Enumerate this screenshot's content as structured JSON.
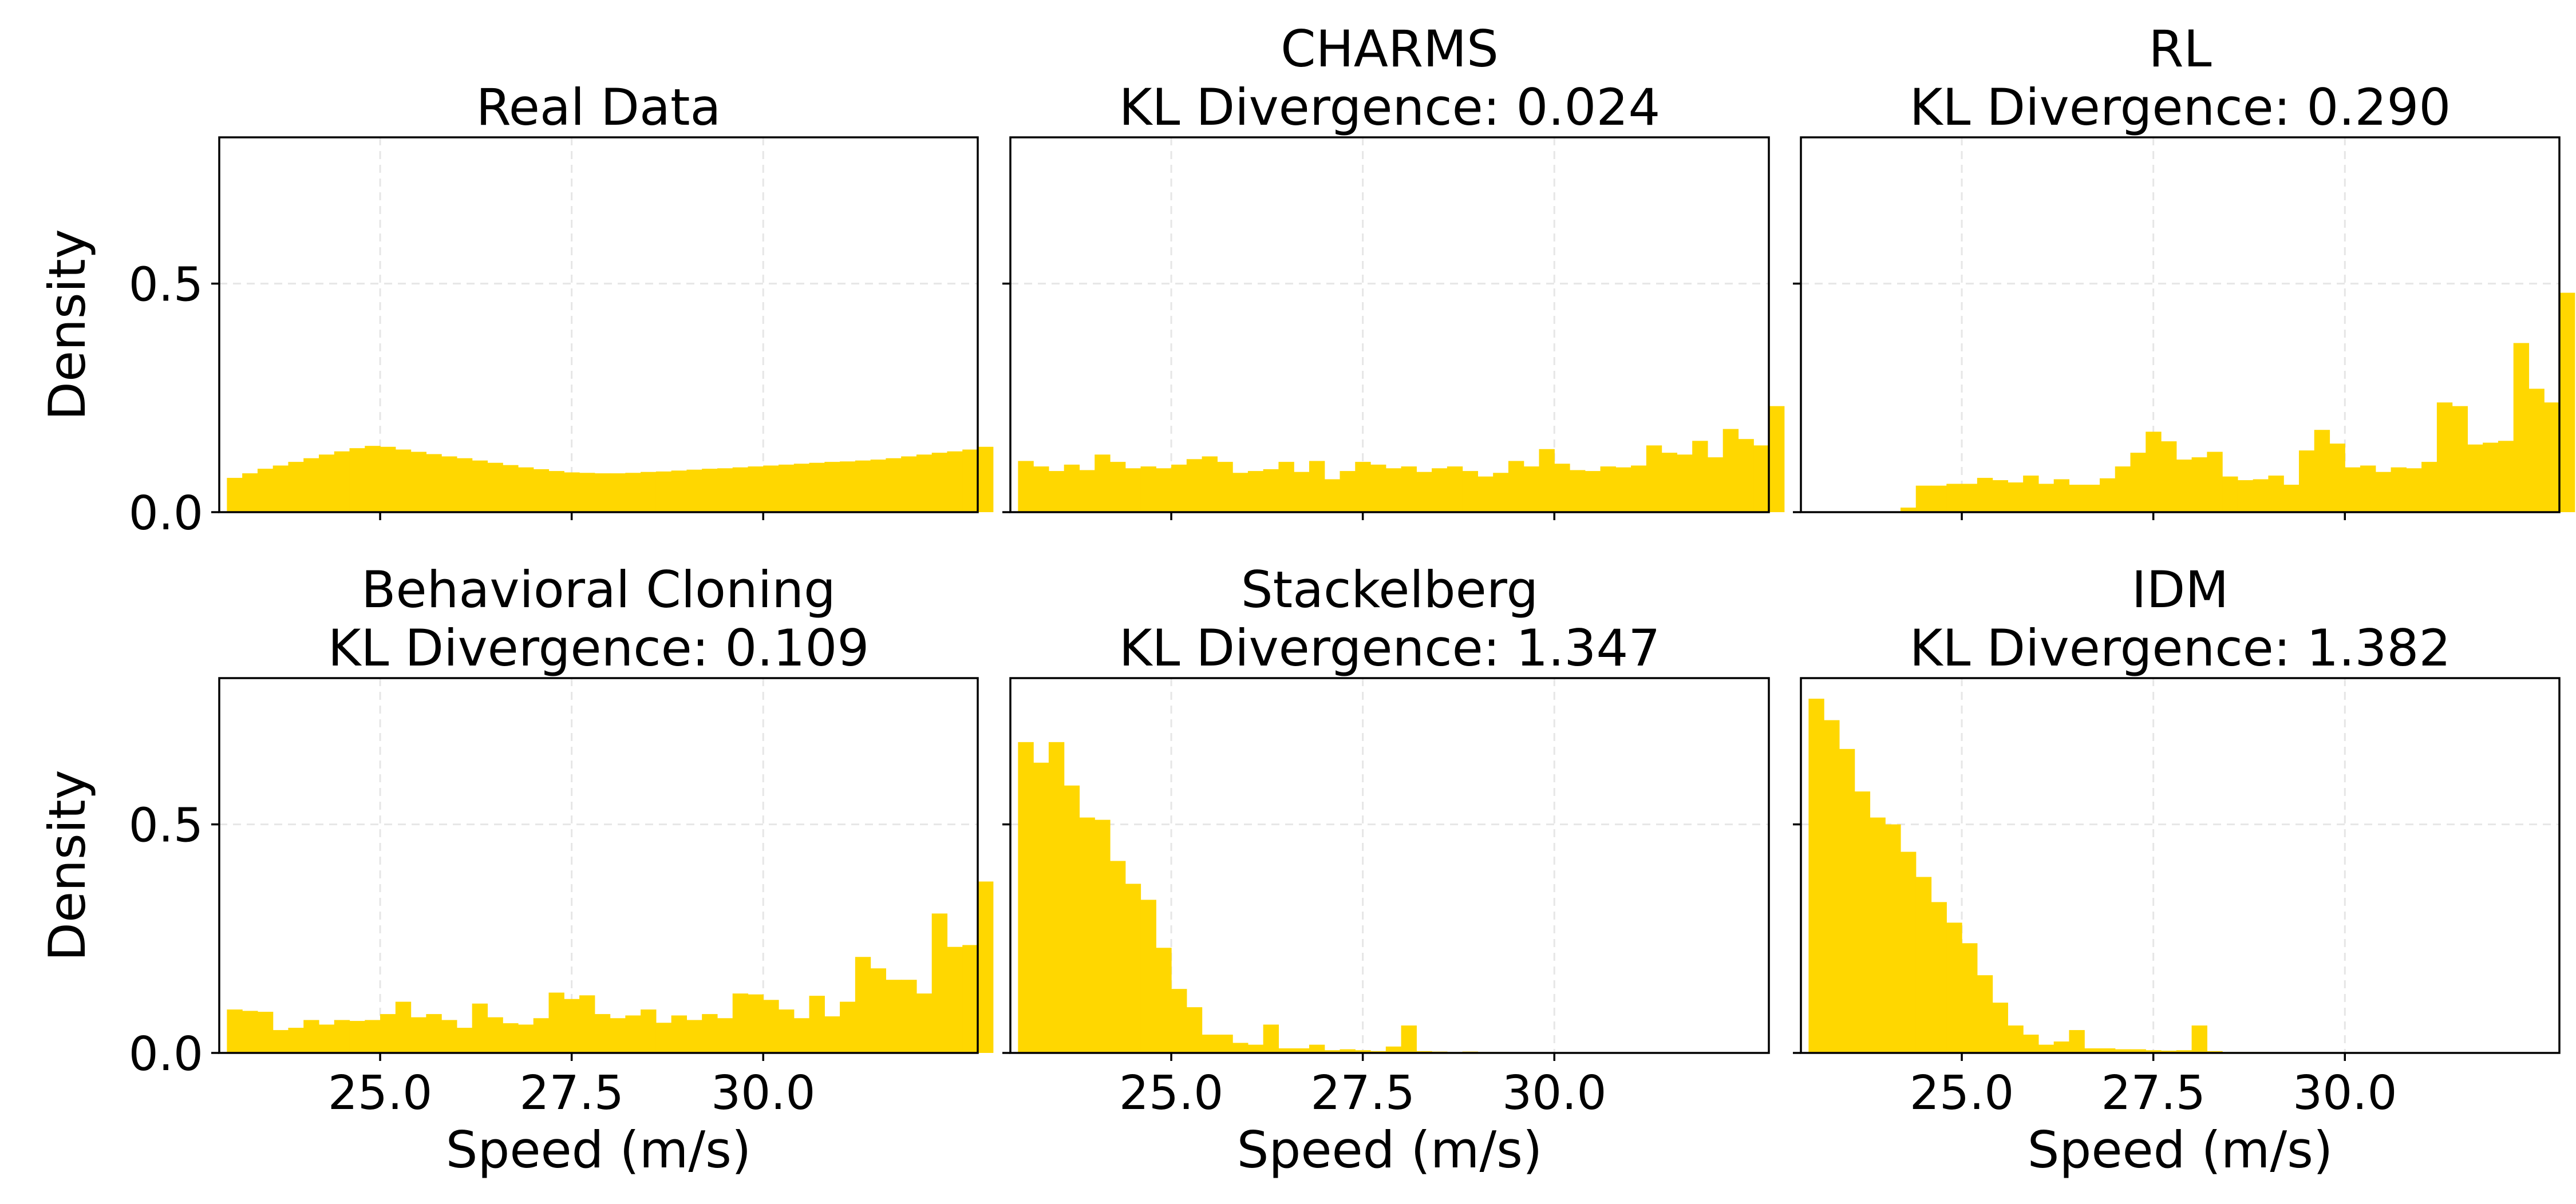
{
  "figure": {
    "bar_color": "#FFD700",
    "frame_color": "#000000",
    "grid_color": "#e6e6e6"
  },
  "chart_data": [
    {
      "type": "bar",
      "title": "Real Data",
      "title_line2": "",
      "xlabel": "",
      "ylabel": "Density",
      "xlim": [
        22.9,
        32.8
      ],
      "ylim": [
        0.0,
        0.82
      ],
      "xticks": [
        25.0,
        27.5,
        30.0
      ],
      "xtick_labels": [
        "",
        "",
        ""
      ],
      "yticks": [
        0.0,
        0.5
      ],
      "ytick_labels": [
        "0.0",
        "0.5"
      ],
      "grid": true,
      "bin_start": 23.0,
      "bin_width": 0.2,
      "values": [
        0.075,
        0.085,
        0.095,
        0.102,
        0.11,
        0.118,
        0.126,
        0.133,
        0.14,
        0.145,
        0.143,
        0.137,
        0.132,
        0.127,
        0.122,
        0.118,
        0.113,
        0.108,
        0.103,
        0.098,
        0.094,
        0.09,
        0.087,
        0.086,
        0.085,
        0.085,
        0.086,
        0.088,
        0.089,
        0.091,
        0.093,
        0.095,
        0.096,
        0.098,
        0.1,
        0.102,
        0.104,
        0.106,
        0.108,
        0.11,
        0.111,
        0.113,
        0.115,
        0.118,
        0.122,
        0.126,
        0.13,
        0.133,
        0.137,
        0.143
      ]
    },
    {
      "type": "bar",
      "title": "CHARMS",
      "title_line2": "KL Divergence: 0.024",
      "xlabel": "",
      "ylabel": "",
      "xlim": [
        22.9,
        32.8
      ],
      "ylim": [
        0.0,
        0.82
      ],
      "xticks": [
        25.0,
        27.5,
        30.0
      ],
      "xtick_labels": [
        "",
        "",
        ""
      ],
      "yticks": [
        0.0,
        0.5
      ],
      "ytick_labels": [
        "",
        ""
      ],
      "grid": true,
      "bin_start": 23.0,
      "bin_width": 0.2,
      "values": [
        0.112,
        0.1,
        0.09,
        0.104,
        0.092,
        0.126,
        0.11,
        0.096,
        0.1,
        0.096,
        0.104,
        0.116,
        0.122,
        0.11,
        0.086,
        0.09,
        0.094,
        0.11,
        0.088,
        0.112,
        0.072,
        0.09,
        0.11,
        0.104,
        0.096,
        0.1,
        0.088,
        0.096,
        0.1,
        0.09,
        0.078,
        0.086,
        0.112,
        0.1,
        0.138,
        0.106,
        0.092,
        0.09,
        0.1,
        0.098,
        0.102,
        0.146,
        0.13,
        0.126,
        0.156,
        0.12,
        0.182,
        0.16,
        0.146,
        0.232
      ]
    },
    {
      "type": "bar",
      "title": "RL",
      "title_line2": "KL Divergence: 0.290",
      "xlabel": "",
      "ylabel": "",
      "xlim": [
        22.9,
        32.8
      ],
      "ylim": [
        0.0,
        0.82
      ],
      "xticks": [
        25.0,
        27.5,
        30.0
      ],
      "xtick_labels": [
        "",
        "",
        ""
      ],
      "yticks": [
        0.0,
        0.5
      ],
      "ytick_labels": [
        "",
        ""
      ],
      "grid": true,
      "bin_start": 23.0,
      "bin_width": 0.2,
      "values": [
        0.0,
        0.0,
        0.0,
        0.0,
        0.0,
        0.0,
        0.01,
        0.058,
        0.058,
        0.062,
        0.062,
        0.075,
        0.07,
        0.065,
        0.08,
        0.062,
        0.072,
        0.06,
        0.06,
        0.074,
        0.1,
        0.13,
        0.176,
        0.155,
        0.115,
        0.12,
        0.132,
        0.078,
        0.07,
        0.072,
        0.08,
        0.06,
        0.135,
        0.18,
        0.15,
        0.098,
        0.102,
        0.088,
        0.098,
        0.096,
        0.11,
        0.24,
        0.232,
        0.148,
        0.152,
        0.156,
        0.37,
        0.27,
        0.24,
        0.48
      ]
    },
    {
      "type": "bar",
      "title": "Behavioral Cloning",
      "title_line2": "KL Divergence: 0.109",
      "xlabel": "Speed (m/s)",
      "ylabel": "Density",
      "xlim": [
        22.9,
        32.8
      ],
      "ylim": [
        0.0,
        0.82
      ],
      "xticks": [
        25.0,
        27.5,
        30.0
      ],
      "xtick_labels": [
        "25.0",
        "27.5",
        "30.0"
      ],
      "yticks": [
        0.0,
        0.5
      ],
      "ytick_labels": [
        "0.0",
        "0.5"
      ],
      "grid": true,
      "bin_start": 23.0,
      "bin_width": 0.2,
      "values": [
        0.095,
        0.092,
        0.09,
        0.05,
        0.055,
        0.072,
        0.062,
        0.072,
        0.07,
        0.072,
        0.085,
        0.112,
        0.078,
        0.085,
        0.072,
        0.055,
        0.108,
        0.078,
        0.065,
        0.062,
        0.076,
        0.132,
        0.118,
        0.126,
        0.085,
        0.076,
        0.082,
        0.095,
        0.066,
        0.082,
        0.072,
        0.085,
        0.076,
        0.13,
        0.128,
        0.116,
        0.095,
        0.076,
        0.125,
        0.08,
        0.112,
        0.21,
        0.185,
        0.16,
        0.16,
        0.13,
        0.305,
        0.232,
        0.236,
        0.375
      ]
    },
    {
      "type": "bar",
      "title": "Stackelberg",
      "title_line2": "KL Divergence: 1.347",
      "xlabel": "Speed (m/s)",
      "ylabel": "",
      "xlim": [
        22.9,
        32.8
      ],
      "ylim": [
        0.0,
        0.82
      ],
      "xticks": [
        25.0,
        27.5,
        30.0
      ],
      "xtick_labels": [
        "25.0",
        "27.5",
        "30.0"
      ],
      "yticks": [
        0.0,
        0.5
      ],
      "ytick_labels": [
        "",
        ""
      ],
      "grid": true,
      "bin_start": 23.0,
      "bin_width": 0.2,
      "values": [
        0.68,
        0.635,
        0.68,
        0.585,
        0.515,
        0.51,
        0.42,
        0.37,
        0.335,
        0.23,
        0.14,
        0.1,
        0.04,
        0.04,
        0.022,
        0.018,
        0.062,
        0.01,
        0.01,
        0.018,
        0.006,
        0.008,
        0.006,
        0.004,
        0.014,
        0.06,
        0.004,
        0.003,
        0.002,
        0.003,
        0.002,
        0.002,
        0.001,
        0.001,
        0.001,
        0.001,
        0.0,
        0.0,
        0.0,
        0.0,
        0.0,
        0.0,
        0.0,
        0.0,
        0.0,
        0.0,
        0.0,
        0.0,
        0.0,
        0.0
      ]
    },
    {
      "type": "bar",
      "title": "IDM",
      "title_line2": "KL Divergence: 1.382",
      "xlabel": "Speed (m/s)",
      "ylabel": "",
      "xlim": [
        22.9,
        32.8
      ],
      "ylim": [
        0.0,
        0.82
      ],
      "xticks": [
        25.0,
        27.5,
        30.0
      ],
      "xtick_labels": [
        "25.0",
        "27.5",
        "30.0"
      ],
      "yticks": [
        0.0,
        0.5
      ],
      "ytick_labels": [
        "",
        ""
      ],
      "grid": true,
      "bin_start": 23.0,
      "bin_width": 0.2,
      "values": [
        0.775,
        0.728,
        0.665,
        0.572,
        0.515,
        0.5,
        0.44,
        0.385,
        0.33,
        0.285,
        0.24,
        0.17,
        0.11,
        0.06,
        0.04,
        0.018,
        0.025,
        0.05,
        0.01,
        0.01,
        0.008,
        0.008,
        0.006,
        0.005,
        0.006,
        0.06,
        0.004,
        0.002,
        0.002,
        0.002,
        0.001,
        0.001,
        0.001,
        0.0,
        0.0,
        0.0,
        0.0,
        0.0,
        0.0,
        0.0,
        0.0,
        0.0,
        0.0,
        0.0,
        0.0,
        0.0,
        0.0,
        0.0,
        0.0,
        0.0
      ]
    }
  ]
}
